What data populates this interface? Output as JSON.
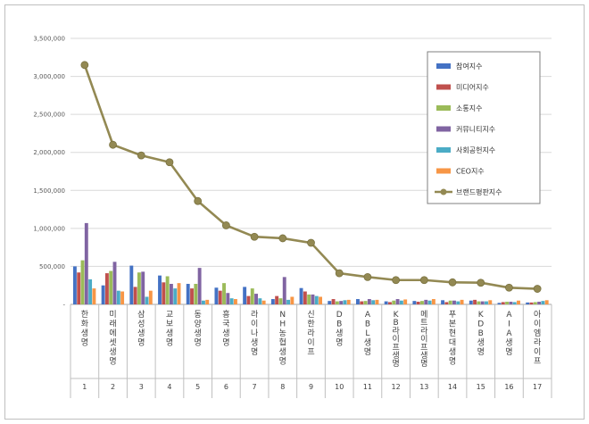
{
  "chart_data": {
    "type": "bar",
    "title": "",
    "xlabel": "",
    "ylabel": "",
    "ylim": [
      0,
      3500000
    ],
    "yticks": [
      0,
      500000,
      1000000,
      1500000,
      2000000,
      2500000,
      3000000,
      3500000
    ],
    "ytick_labels": [
      "-",
      "500,000",
      "1,000,000",
      "1,500,000",
      "2,000,000",
      "2,500,000",
      "3,000,000",
      "3,500,000"
    ],
    "grid": true,
    "legend_position": "top-right",
    "categories": [
      "한화생명",
      "미래에셋생명",
      "삼성생명",
      "교보생명",
      "동양생명",
      "흥국생명",
      "라이나생명",
      "NH농협생명",
      "신한라이프",
      "DB생명",
      "ABL생명",
      "KB라이프생명",
      "메트라이프생명",
      "푸본현대생명",
      "KDB생명",
      "AIA생명",
      "아이엠라이프"
    ],
    "indices": [
      "1",
      "2",
      "3",
      "4",
      "5",
      "6",
      "7",
      "8",
      "9",
      "10",
      "11",
      "12",
      "13",
      "14",
      "15",
      "16",
      "17"
    ],
    "series": [
      {
        "name": "참여지수",
        "kind": "bar",
        "color": "#4472c4",
        "values": [
          500000,
          250000,
          510000,
          380000,
          270000,
          220000,
          230000,
          70000,
          215000,
          45000,
          70000,
          40000,
          45000,
          55000,
          50000,
          20000,
          25000
        ]
      },
      {
        "name": "미디어지수",
        "kind": "bar",
        "color": "#c0504d",
        "values": [
          420000,
          410000,
          230000,
          290000,
          210000,
          180000,
          110000,
          110000,
          170000,
          70000,
          40000,
          30000,
          35000,
          30000,
          60000,
          30000,
          25000
        ]
      },
      {
        "name": "소통지수",
        "kind": "bar",
        "color": "#9bbb59",
        "values": [
          580000,
          440000,
          420000,
          370000,
          270000,
          280000,
          210000,
          80000,
          130000,
          40000,
          45000,
          50000,
          45000,
          50000,
          40000,
          35000,
          30000
        ]
      },
      {
        "name": "커뮤니티지수",
        "kind": "bar",
        "color": "#8064a2",
        "values": [
          1070000,
          560000,
          430000,
          270000,
          480000,
          150000,
          140000,
          360000,
          130000,
          45000,
          70000,
          70000,
          60000,
          50000,
          40000,
          35000,
          35000
        ]
      },
      {
        "name": "사회공헌지수",
        "kind": "bar",
        "color": "#4bacc6",
        "values": [
          330000,
          180000,
          100000,
          210000,
          50000,
          80000,
          80000,
          60000,
          110000,
          55000,
          55000,
          50000,
          50000,
          40000,
          40000,
          30000,
          45000
        ]
      },
      {
        "name": "CEO지수",
        "kind": "bar",
        "color": "#f79646",
        "values": [
          210000,
          170000,
          180000,
          280000,
          60000,
          70000,
          50000,
          100000,
          100000,
          60000,
          60000,
          65000,
          70000,
          60000,
          55000,
          50000,
          55000
        ]
      },
      {
        "name": "브랜드평판지수",
        "kind": "line",
        "color": "#938953",
        "values": [
          3150000,
          2100000,
          1960000,
          1870000,
          1360000,
          1040000,
          890000,
          870000,
          810000,
          410000,
          360000,
          320000,
          320000,
          290000,
          285000,
          220000,
          205000
        ]
      }
    ]
  }
}
